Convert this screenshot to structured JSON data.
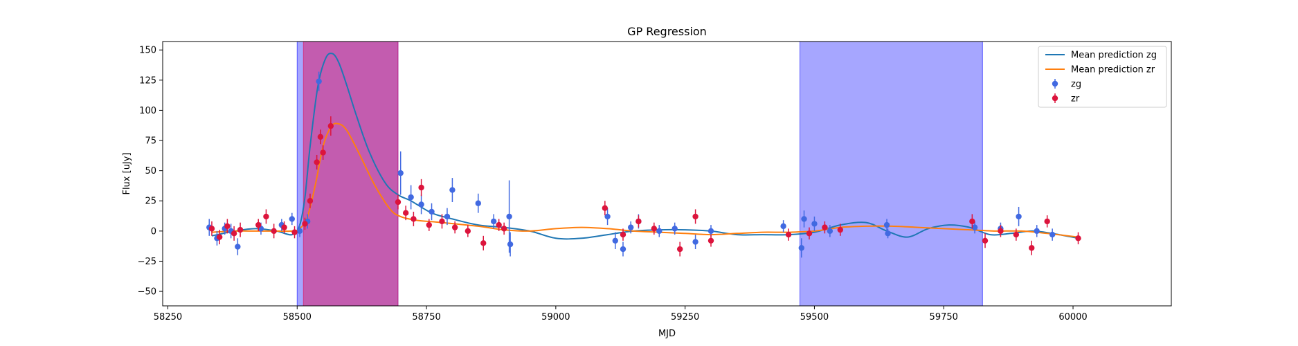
{
  "chart_data": {
    "type": "line",
    "title": "GP Regression",
    "xlabel": "MJD",
    "ylabel": "Flux [uJy]",
    "xlim": [
      58240,
      60190
    ],
    "ylim": [
      -62,
      157
    ],
    "x_ticks": [
      58250,
      58500,
      58750,
      59000,
      59250,
      59500,
      59750,
      60000
    ],
    "y_ticks": [
      -50,
      -25,
      0,
      25,
      50,
      75,
      100,
      125,
      150
    ],
    "grid": false,
    "legend_position": "top-right",
    "shaded_regions": [
      {
        "x0": 58500,
        "x1": 58695,
        "color": "#0000ff",
        "alpha": 0.35
      },
      {
        "x0": 58512,
        "x1": 58695,
        "color": "#e0115f",
        "alpha": 0.5
      },
      {
        "x0": 59472,
        "x1": 59825,
        "color": "#0000ff",
        "alpha": 0.35
      }
    ],
    "series": [
      {
        "name": "Mean prediction zg",
        "kind": "line",
        "color": "#1f77b4",
        "x": [
          58335,
          58380,
          58420,
          58460,
          58490,
          58505,
          58515,
          58525,
          58540,
          58555,
          58568,
          58580,
          58595,
          58615,
          58640,
          58670,
          58695,
          58720,
          58760,
          58800,
          58850,
          58900,
          58950,
          59000,
          59050,
          59100,
          59150,
          59200,
          59250,
          59300,
          59350,
          59400,
          59450,
          59500,
          59550,
          59600,
          59640,
          59680,
          59720,
          59760,
          59800,
          59840,
          59880,
          59920,
          59960,
          60010
        ],
        "y": [
          -4,
          0,
          2,
          0,
          -3,
          5,
          28,
          70,
          120,
          143,
          147,
          140,
          122,
          95,
          65,
          40,
          30,
          25,
          15,
          10,
          5,
          3,
          0,
          -6,
          -6,
          -3,
          0,
          1,
          1,
          0,
          -3,
          -3,
          -3,
          -1,
          5,
          7,
          0,
          -5,
          2,
          5,
          3,
          -3,
          -2,
          0,
          -2,
          -6
        ]
      },
      {
        "name": "Mean prediction zr",
        "kind": "line",
        "color": "#ff7f0e",
        "x": [
          58335,
          58380,
          58420,
          58460,
          58490,
          58505,
          58520,
          58535,
          58550,
          58565,
          58578,
          58595,
          58620,
          58650,
          58680,
          58700,
          58730,
          58780,
          58850,
          58900,
          58950,
          59000,
          59050,
          59100,
          59150,
          59200,
          59250,
          59300,
          59350,
          59400,
          59450,
          59500,
          59550,
          59600,
          59650,
          59700,
          59750,
          59800,
          59850,
          59900,
          59950,
          60010
        ],
        "y": [
          -1,
          0,
          0,
          0,
          0,
          2,
          12,
          38,
          70,
          86,
          89,
          84,
          64,
          38,
          18,
          12,
          9,
          7,
          4,
          1,
          0,
          2,
          3,
          2,
          0,
          -1,
          -2,
          -3,
          -2,
          -1,
          -1,
          0,
          3,
          4,
          4,
          3,
          2,
          1,
          0,
          0,
          -2,
          -5
        ]
      },
      {
        "name": "zg",
        "kind": "errorbar",
        "color": "#4169e1",
        "x": [
          58330,
          58345,
          58360,
          58372,
          58385,
          58430,
          58470,
          58490,
          58505,
          58520,
          58542,
          58700,
          58720,
          58740,
          58760,
          58790,
          58800,
          58850,
          58880,
          58910,
          58912,
          59100,
          59115,
          59130,
          59145,
          59160,
          59200,
          59230,
          59270,
          59300,
          59440,
          59475,
          59480,
          59500,
          59530,
          59640,
          59642,
          59810,
          59860,
          59895,
          59930,
          59960
        ],
        "y": [
          3,
          -6,
          2,
          0,
          -13,
          2,
          5,
          10,
          0,
          8,
          124,
          48,
          28,
          22,
          16,
          12,
          34,
          23,
          8,
          12,
          -11,
          12,
          -8,
          -15,
          3,
          8,
          0,
          2,
          -9,
          0,
          4,
          -14,
          10,
          6,
          0,
          5,
          -2,
          3,
          2,
          12,
          0,
          -3
        ],
        "err": [
          7,
          6,
          5,
          6,
          7,
          5,
          5,
          5,
          5,
          6,
          8,
          18,
          10,
          8,
          7,
          7,
          10,
          8,
          6,
          30,
          10,
          7,
          7,
          6,
          5,
          6,
          5,
          5,
          6,
          5,
          5,
          8,
          7,
          6,
          5,
          5,
          4,
          5,
          5,
          8,
          5,
          5
        ]
      },
      {
        "name": "zr",
        "kind": "errorbar",
        "color": "#dc143c",
        "x": [
          58335,
          58350,
          58365,
          58378,
          58390,
          58425,
          58440,
          58455,
          58475,
          58495,
          58515,
          58525,
          58538,
          58545,
          58550,
          58565,
          58695,
          58710,
          58725,
          58740,
          58755,
          58780,
          58805,
          58830,
          58860,
          58890,
          58900,
          59095,
          59130,
          59160,
          59190,
          59240,
          59270,
          59300,
          59450,
          59490,
          59520,
          59550,
          59805,
          59830,
          59860,
          59890,
          59920,
          59950,
          60010
        ],
        "y": [
          2,
          -5,
          4,
          -2,
          1,
          5,
          12,
          0,
          3,
          -1,
          6,
          25,
          57,
          78,
          65,
          87,
          24,
          15,
          10,
          36,
          5,
          8,
          3,
          0,
          -10,
          5,
          2,
          19,
          -3,
          8,
          2,
          -15,
          12,
          -8,
          -3,
          -2,
          3,
          1,
          8,
          -8,
          0,
          -3,
          -14,
          8,
          -6
        ],
        "err": [
          6,
          6,
          6,
          6,
          6,
          5,
          6,
          6,
          5,
          5,
          5,
          6,
          6,
          6,
          6,
          8,
          6,
          6,
          6,
          7,
          5,
          6,
          5,
          5,
          6,
          5,
          5,
          6,
          5,
          5,
          5,
          6,
          6,
          5,
          5,
          5,
          5,
          5,
          6,
          6,
          5,
          5,
          6,
          5,
          5
        ]
      }
    ]
  }
}
